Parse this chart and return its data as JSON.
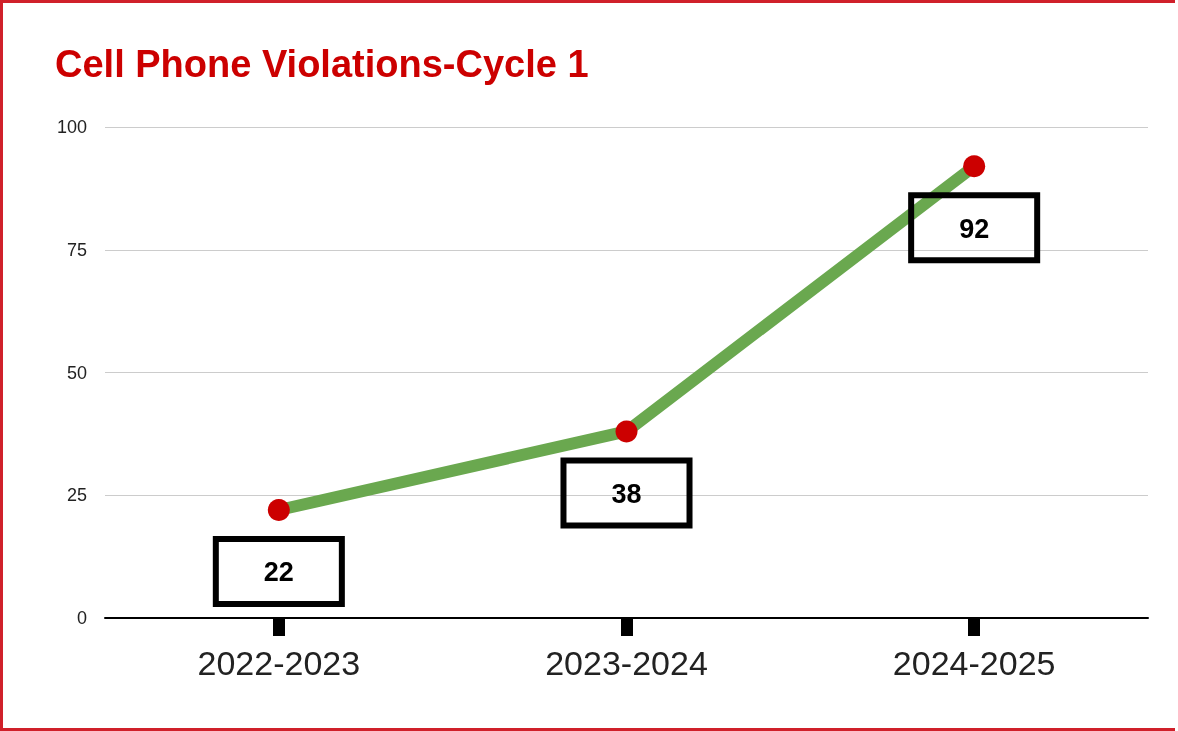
{
  "chart_data": {
    "type": "line",
    "title": "Cell Phone Violations-Cycle 1",
    "categories": [
      "2022-2023",
      "2023-2024",
      "2024-2025"
    ],
    "values": [
      22,
      38,
      92
    ],
    "color": "#6aa84f",
    "colors": [
      "#cc0000",
      "#cc0000",
      "#cc0000"
    ],
    "ylim": [
      0,
      100
    ],
    "yticks": [
      0,
      25,
      50,
      75,
      100
    ],
    "grid": "y",
    "marker": "circle",
    "line_style": "solid",
    "data_labels": true
  }
}
